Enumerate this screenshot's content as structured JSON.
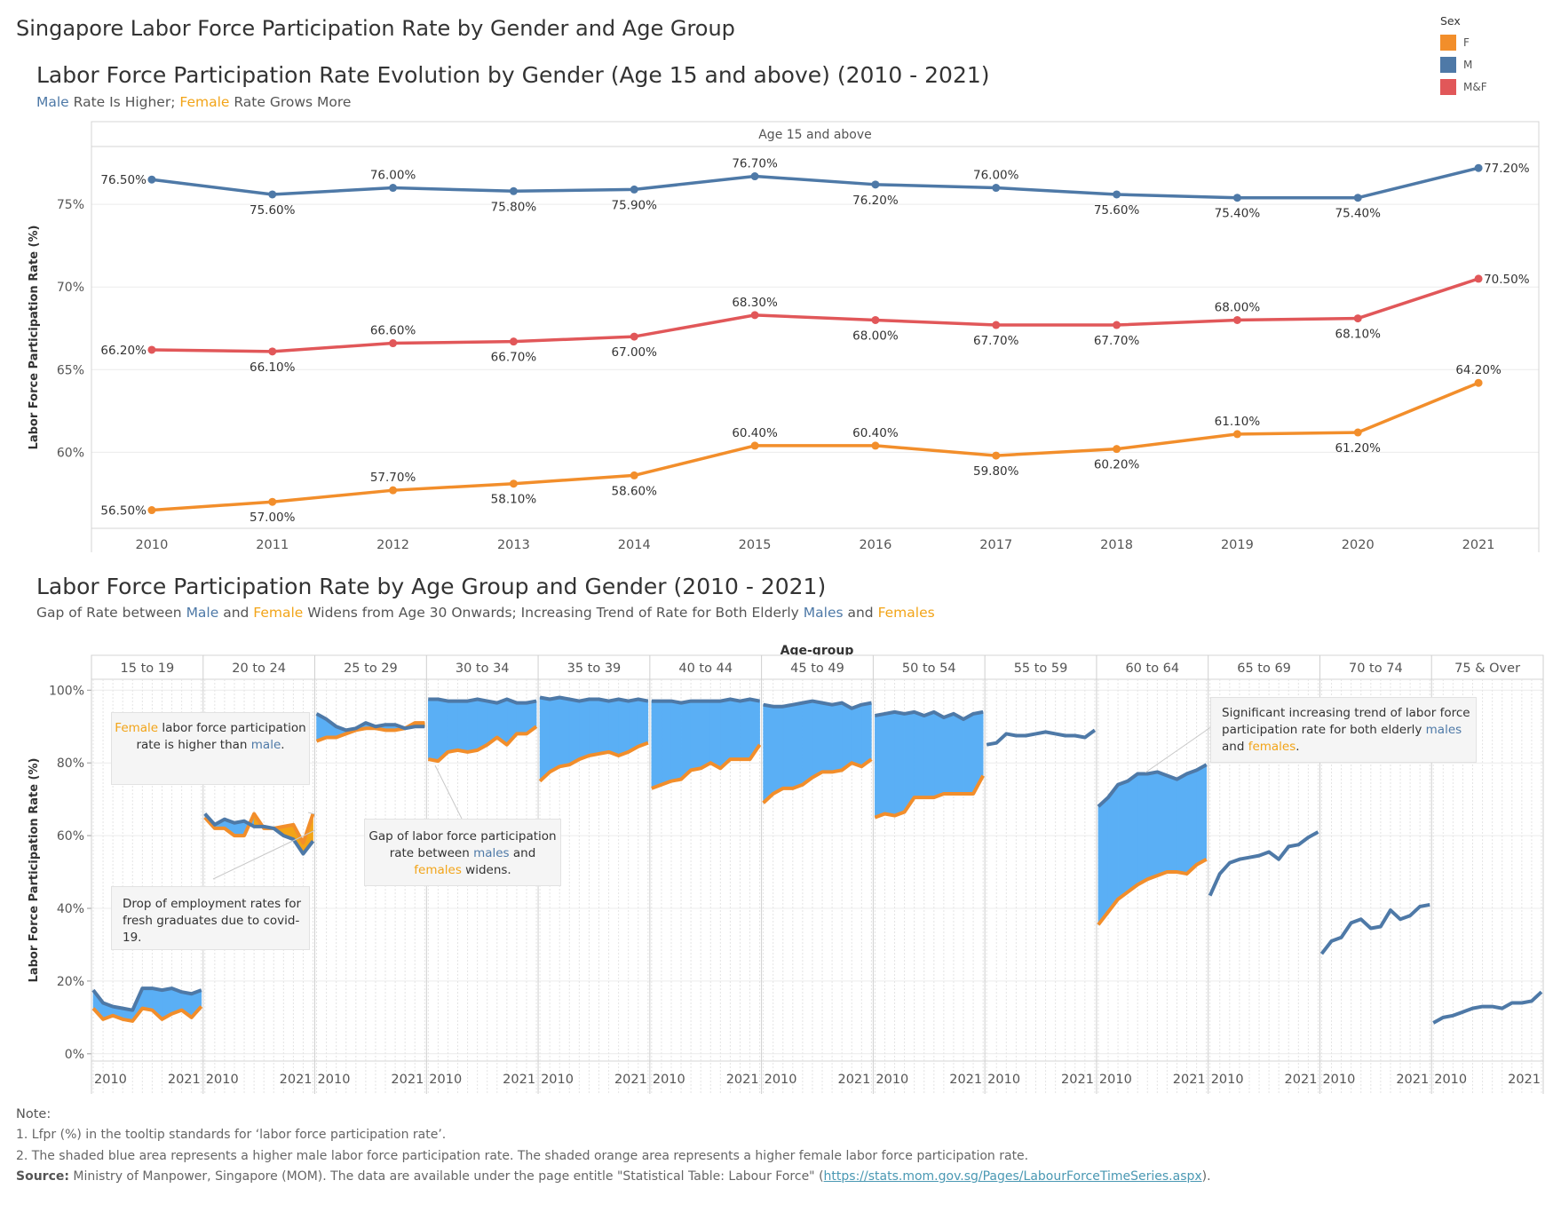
{
  "page": {
    "title": "Singapore Labor Force Participation Rate by Gender and Age Group"
  },
  "legend": {
    "title": "Sex",
    "items": [
      {
        "label": "F",
        "color": "#f28e2b"
      },
      {
        "label": "M",
        "color": "#4e79a7"
      },
      {
        "label": "M&F",
        "color": "#e15759"
      }
    ]
  },
  "chart1": {
    "title": "Labor Force Participation Rate Evolution by Gender (Age 15 and above) (2010 - 2021)",
    "subtitle": {
      "male": "Male",
      "mid": " Rate Is Higher; ",
      "female": "Female",
      "end": " Rate Grows More"
    },
    "panel_header": "Age 15 and above",
    "ylabel": "Labor Force Participation Rate (%)"
  },
  "chart2": {
    "title": "Labor Force Participation Rate by Age Group and Gender (2010 - 2021)",
    "subtitle": {
      "p1": "Gap of Rate between ",
      "male": "Male",
      "p2": " and ",
      "female": "Female",
      "p3": " Widens from Age 30 Onwards; Increasing Trend of Rate for Both Elderly ",
      "males": "Males",
      "p4": " and ",
      "females": "Females"
    },
    "facet_header": "Age-group",
    "ylabel": "Labor Force Participation Rate (%)",
    "annotations": {
      "a1": {
        "female": "Female",
        "t1": " labor force participation rate is higher than ",
        "male": "male",
        "t2": "."
      },
      "a2": {
        "text": "Drop of employment rates for fresh graduates due to covid-19."
      },
      "a3": {
        "t1": "Gap of labor force participation rate between ",
        "males": "males",
        "t2": " and ",
        "females": "females",
        "t3": "  widens."
      },
      "a4": {
        "t1": "Significant increasing trend of labor force participation rate for both elderly ",
        "males": "males",
        "t2": " and ",
        "females": "females",
        "t3": "."
      }
    }
  },
  "chart_data": [
    {
      "type": "line",
      "title": "Labor Force Participation Rate Evolution by Gender (Age 15 and above) (2010 - 2021)",
      "xlabel": "",
      "ylabel": "Labor Force Participation Rate (%)",
      "ylim": [
        55.4,
        78.5
      ],
      "yticks": [
        60,
        65,
        70,
        75
      ],
      "x": [
        "2010",
        "2011",
        "2012",
        "2013",
        "2014",
        "2015",
        "2016",
        "2017",
        "2018",
        "2019",
        "2020",
        "2021"
      ],
      "grid": true,
      "series": [
        {
          "name": "M",
          "color": "#4e79a7",
          "values": [
            76.5,
            75.6,
            76.0,
            75.8,
            75.9,
            76.7,
            76.2,
            76.0,
            75.6,
            75.4,
            75.4,
            77.2
          ],
          "labels": [
            "76.50%",
            "75.60%",
            "76.00%",
            "75.80%",
            "75.90%",
            "76.70%",
            "76.20%",
            "76.00%",
            "75.60%",
            "75.40%",
            "75.40%",
            "77.20%"
          ],
          "label_pos": [
            "L",
            "B",
            "T",
            "B",
            "B",
            "T",
            "B",
            "T",
            "B",
            "B",
            "B",
            "R"
          ]
        },
        {
          "name": "M&F",
          "color": "#e15759",
          "values": [
            66.2,
            66.1,
            66.6,
            66.7,
            67.0,
            68.3,
            68.0,
            67.7,
            67.7,
            68.0,
            68.1,
            70.5
          ],
          "labels": [
            "66.20%",
            "66.10%",
            "66.60%",
            "66.70%",
            "67.00%",
            "68.30%",
            "68.00%",
            "67.70%",
            "67.70%",
            "68.00%",
            "68.10%",
            "70.50%"
          ],
          "label_pos": [
            "L",
            "B",
            "T",
            "B",
            "B",
            "T",
            "B",
            "B",
            "B",
            "T",
            "B",
            "R"
          ]
        },
        {
          "name": "F",
          "color": "#f28e2b",
          "values": [
            56.5,
            57.0,
            57.7,
            58.1,
            58.6,
            60.4,
            60.4,
            59.8,
            60.2,
            61.1,
            61.2,
            64.2
          ],
          "labels": [
            "56.50%",
            "57.00%",
            "57.70%",
            "58.10%",
            "58.60%",
            "60.40%",
            "60.40%",
            "59.80%",
            "60.20%",
            "61.10%",
            "61.20%",
            "64.20%"
          ],
          "label_pos": [
            "L",
            "B",
            "T",
            "B",
            "B",
            "T",
            "T",
            "B",
            "B",
            "T",
            "B",
            "T"
          ]
        }
      ]
    },
    {
      "type": "area",
      "title": "Labor Force Participation Rate by Age Group and Gender (2010 - 2021)",
      "ylabel": "Labor Force Participation Rate (%)",
      "ylim": [
        -2,
        103
      ],
      "yticks": [
        0,
        20,
        40,
        60,
        80,
        100
      ],
      "ytick_labels": [
        "0%",
        "20%",
        "40%",
        "60%",
        "80%",
        "100%"
      ],
      "x": [
        "2010",
        "2011",
        "2012",
        "2013",
        "2014",
        "2015",
        "2016",
        "2017",
        "2018",
        "2019",
        "2020",
        "2021"
      ],
      "x_tick_labels": [
        "2010",
        "2021"
      ],
      "colors": {
        "male_line": "#4e79a7",
        "female_line": "#f28e2b",
        "male_gap_fill": "#5aaff5",
        "female_gap_fill": "#f2a418"
      },
      "panels": [
        {
          "group": "15 to 19",
          "male": [
            17.5,
            14,
            13,
            12.5,
            12,
            18,
            18,
            17.5,
            18,
            17,
            16.5,
            17.5
          ],
          "female": [
            12.5,
            9.5,
            10.5,
            9.5,
            9,
            12.5,
            12,
            9.5,
            11,
            12,
            10,
            13
          ]
        },
        {
          "group": "20 to 24",
          "male": [
            66,
            63,
            64.5,
            63.5,
            64,
            62.5,
            62.5,
            62,
            60,
            59,
            55,
            58.5
          ],
          "female": [
            65,
            62,
            62,
            60,
            60,
            66,
            62,
            62,
            62.5,
            63,
            58,
            66
          ]
        },
        {
          "group": "25 to 29",
          "male": [
            93.5,
            92,
            90,
            89,
            89.5,
            91,
            90,
            90.5,
            90.5,
            89.5,
            90,
            90
          ],
          "female": [
            86,
            87,
            87,
            88,
            89,
            89.5,
            89.5,
            89,
            89,
            89.5,
            91,
            91
          ]
        },
        {
          "group": "30 to 34",
          "male": [
            97.5,
            97.5,
            97,
            97,
            97,
            97.5,
            97,
            96.5,
            97.5,
            96.5,
            96.5,
            97
          ],
          "female": [
            81,
            80.5,
            83,
            83.5,
            83,
            83.5,
            85,
            87,
            85,
            88,
            88,
            90
          ]
        },
        {
          "group": "35 to 39",
          "male": [
            98,
            97.5,
            98,
            97.5,
            97,
            97.5,
            97.5,
            97,
            97.5,
            97,
            97.5,
            97
          ],
          "female": [
            75,
            77.5,
            79,
            79.5,
            81,
            82,
            82.5,
            83,
            82,
            83,
            84.5,
            85.5
          ]
        },
        {
          "group": "40 to 44",
          "male": [
            97,
            97,
            97,
            96.5,
            97,
            97,
            97,
            97,
            97.5,
            97,
            97.5,
            97
          ],
          "female": [
            73,
            74,
            75,
            75.5,
            78,
            78.5,
            80,
            78.5,
            81,
            81,
            81,
            85
          ]
        },
        {
          "group": "45 to 49",
          "male": [
            96,
            95.5,
            95.5,
            96,
            96.5,
            97,
            96.5,
            96,
            96.5,
            95,
            96,
            96.5
          ],
          "female": [
            69,
            71.5,
            73,
            73,
            74,
            76,
            77.5,
            77.5,
            78,
            80,
            79,
            81
          ]
        },
        {
          "group": "50 to 54",
          "male": [
            93,
            93.5,
            94,
            93.5,
            94,
            93,
            94,
            92.5,
            93.5,
            92,
            93.5,
            94
          ],
          "female": [
            65,
            66,
            65.5,
            66.5,
            70.5,
            70.5,
            70.5,
            71.5,
            71.5,
            71.5,
            71.5,
            76.5
          ]
        },
        {
          "group": "55 to 59",
          "male": [
            85,
            85.5,
            88,
            87.5,
            87.5,
            88,
            88.5,
            88,
            87.5,
            87.5,
            87,
            89
          ]
        },
        {
          "group": "60 to 64",
          "male": [
            68,
            70.5,
            74,
            75,
            77,
            77,
            77.5,
            76.5,
            75.5,
            77,
            78,
            79.5
          ],
          "female": [
            35.5,
            39,
            42.5,
            44.5,
            46.5,
            48,
            49,
            50,
            50,
            49.5,
            52,
            53.5
          ]
        },
        {
          "group": "65 to 69",
          "male": [
            43.5,
            49.5,
            52.5,
            53.5,
            54,
            54.5,
            55.5,
            53.5,
            57,
            57.5,
            59.5,
            61
          ]
        },
        {
          "group": "70 to 74",
          "male": [
            27.5,
            31,
            32,
            36,
            37,
            34.5,
            35,
            39.5,
            37,
            38,
            40.5,
            41
          ]
        },
        {
          "group": "75 & Over",
          "male": [
            8.5,
            10,
            10.5,
            11.5,
            12.5,
            13,
            13,
            12.5,
            14,
            14,
            14.5,
            17
          ]
        }
      ]
    }
  ],
  "notes": {
    "head": "Note:",
    "n1": "1. Lfpr (%) in the tooltip standards for ‘labor force participation rate’.",
    "n2": "2. The shaded blue area represents a higher male labor force participation rate. The shaded orange area represents a higher female labor force participation rate.",
    "src_label": "Source:",
    "src_text": "  Ministry of Manpower, Singapore (MOM). The data are available under the page entitle \"Statistical Table: Labour Force\" (",
    "src_link": "https://stats.mom.gov.sg/Pages/LabourForceTimeSeries.aspx",
    "src_end": ")."
  }
}
